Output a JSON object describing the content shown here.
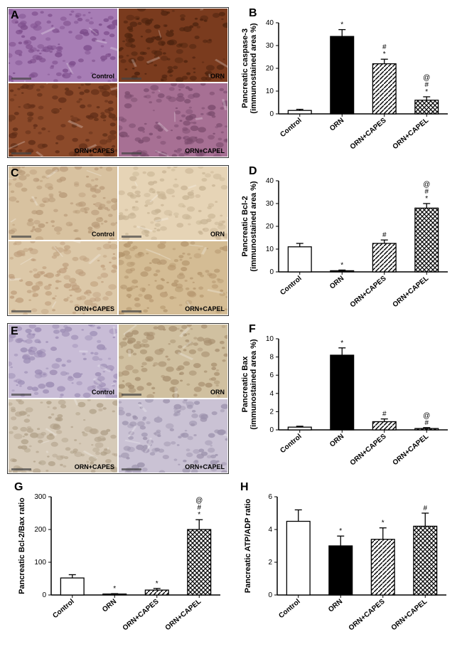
{
  "categories": [
    "Control",
    "ORN",
    "ORN+CAPES",
    "ORN+CAPEL"
  ],
  "panel_A": {
    "letter": "A",
    "cells": [
      {
        "bg": "#a77db5",
        "spots": "#7c4c8a",
        "label": "Control"
      },
      {
        "bg": "#7a3b1e",
        "spots": "#4c220e",
        "label": "ORN"
      },
      {
        "bg": "#8c4a2a",
        "spots": "#5e2c16",
        "label": "ORN+CAPES"
      },
      {
        "bg": "#a77094",
        "spots": "#7a4a6c",
        "label": "ORN+CAPEL"
      }
    ]
  },
  "panel_B": {
    "letter": "B",
    "ylabel1": "Pancreatic caspase-3",
    "ylabel2": "(immunostained area %)",
    "ymax": 40,
    "ystep": 10,
    "values": [
      1.5,
      34,
      22,
      6
    ],
    "errors": [
      0.5,
      3,
      2,
      1.5
    ],
    "fills": [
      "#ffffff",
      "#000000",
      "diag",
      "cross"
    ],
    "sigs": [
      [],
      [
        "*"
      ],
      [
        "*",
        "#"
      ],
      [
        "*",
        "#",
        "@"
      ]
    ]
  },
  "panel_C": {
    "letter": "C",
    "cells": [
      {
        "bg": "#d8c2a0",
        "spots": "#b89a78",
        "label": "Control"
      },
      {
        "bg": "#e6d4b6",
        "spots": "#c8b494",
        "label": "ORN"
      },
      {
        "bg": "#dcc8a8",
        "spots": "#be9e7c",
        "label": "ORN+CAPES"
      },
      {
        "bg": "#d4bc94",
        "spots": "#b4966e",
        "label": "ORN+CAPEL"
      }
    ]
  },
  "panel_D": {
    "letter": "D",
    "ylabel1": "Pancreatic Bcl-2",
    "ylabel2": "(immunostained area %)",
    "ymax": 40,
    "ystep": 10,
    "values": [
      11,
      0.5,
      12.5,
      28
    ],
    "errors": [
      1.5,
      0.3,
      1.5,
      2
    ],
    "fills": [
      "#ffffff",
      "#000000",
      "diag",
      "cross"
    ],
    "sigs": [
      [],
      [
        "*"
      ],
      [
        "#"
      ],
      [
        "*",
        "#",
        "@"
      ]
    ]
  },
  "panel_E": {
    "letter": "E",
    "cells": [
      {
        "bg": "#c8bcd6",
        "spots": "#9a8ab2",
        "label": "Control"
      },
      {
        "bg": "#d0c0a0",
        "spots": "#a89070",
        "label": "ORN"
      },
      {
        "bg": "#d6cab8",
        "spots": "#b0a088",
        "label": "ORN+CAPES"
      },
      {
        "bg": "#cac2d4",
        "spots": "#9c92ac",
        "label": "ORN+CAPEL"
      }
    ]
  },
  "panel_F": {
    "letter": "F",
    "ylabel1": "Pancreatic Bax",
    "ylabel2": "(immunostained area %)",
    "ymax": 10,
    "ystep": 2,
    "values": [
      0.3,
      8.2,
      0.9,
      0.15
    ],
    "errors": [
      0.1,
      0.8,
      0.3,
      0.1
    ],
    "fills": [
      "#ffffff",
      "#000000",
      "diag",
      "cross"
    ],
    "sigs": [
      [],
      [
        "*"
      ],
      [
        "#"
      ],
      [
        "#",
        "@"
      ]
    ]
  },
  "panel_G": {
    "letter": "G",
    "ylabel1": "Pancreatic Bcl-2/Bax ratio",
    "ylabel2": "",
    "ymax": 300,
    "ystep": 100,
    "values": [
      52,
      3,
      15,
      200
    ],
    "errors": [
      10,
      1,
      5,
      30
    ],
    "fills": [
      "#ffffff",
      "#000000",
      "diag",
      "cross"
    ],
    "sigs": [
      [],
      [
        "*"
      ],
      [
        "*"
      ],
      [
        "*",
        "#",
        "@"
      ]
    ]
  },
  "panel_H": {
    "letter": "H",
    "ylabel1": "Pancreatic ATP/ADP ratio",
    "ylabel2": "",
    "ymax": 6,
    "ystep": 2,
    "values": [
      4.5,
      3.0,
      3.4,
      4.2
    ],
    "errors": [
      0.7,
      0.6,
      0.7,
      0.8
    ],
    "fills": [
      "#ffffff",
      "#000000",
      "diag",
      "cross"
    ],
    "sigs": [
      [],
      [
        "*"
      ],
      [
        "*"
      ],
      [
        "#"
      ]
    ]
  },
  "colors": {
    "axis": "#000000",
    "bar_stroke": "#000000"
  }
}
